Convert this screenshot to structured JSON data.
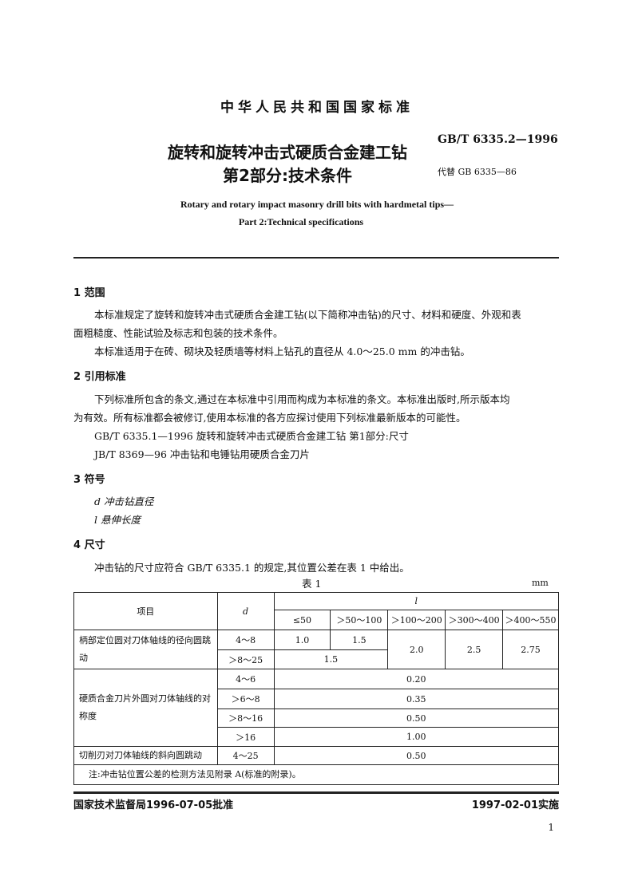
{
  "header": {
    "org": "中华人民共和国国家标准",
    "title_line1": "旋转和旋转冲击式硬质合金建工钻",
    "title_line2": "第2部分:技术条件",
    "code": "GB/T 6335.2—1996",
    "replaces": "代替 GB 6335—86",
    "en_line1": "Rotary and rotary impact masonry drill bits with hardmetal tips—",
    "en_line2": "Part 2:Technical specifications"
  },
  "sections": [
    {
      "heading": "1  范围",
      "paras": [
        "本标准规定了旋转和旋转冲击式硬质合金建工钻(以下简称冲击钻)的尺寸、材料和硬度、外观和表",
        "面粗糙度、性能试验及标志和包装的技术条件。",
        "本标准适用于在砖、砌块及轻质墙等材料上钻孔的直径从 4.0～25.0 mm 的冲击钻。"
      ]
    },
    {
      "heading": "2  引用标准",
      "paras": [
        "下列标准所包含的条文,通过在本标准中引用而构成为本标准的条文。本标准出版时,所示版本均",
        "为有效。所有标准都会被修订,使用本标准的各方应探讨使用下列标准最新版本的可能性。",
        "GB/T 6335.1—1996   旋转和旋转冲击式硬质合金建工钻   第1部分:尺寸",
        "JB/T 8369—96   冲击钻和电锤钻用硬质合金刀片"
      ]
    },
    {
      "heading": "3  符号",
      "paras": [
        "d   冲击钻直径",
        "l   悬伸长度"
      ]
    },
    {
      "heading": "4  尺寸",
      "paras": [
        "冲击钻的尺寸应符合 GB/T 6335.1 的规定,其位置公差在表 1 中给出。"
      ]
    }
  ],
  "table": {
    "caption": "表 1",
    "unit": "mm",
    "col_item": "项目",
    "col_d": "d",
    "col_l": "l",
    "l_ranges": [
      "≤50",
      "＞50～100",
      "＞100～200",
      "＞300～400",
      "＞400～550"
    ],
    "row1": {
      "item": "柄部定位圆对刀体轴线的径向圆跳动",
      "d1": "4～8",
      "d2": "＞8～25",
      "v_a": "1.0",
      "v_b": "1.5",
      "v_ab2": "1.5",
      "v_c": "2.0",
      "v_d": "2.5",
      "v_e": "2.75"
    },
    "row2": {
      "item": "硬质合金刀片外圆对刀体轴线的对称度",
      "d": [
        "4～6",
        "＞6～8",
        "＞8～16",
        "＞16"
      ],
      "v": [
        "0.20",
        "0.35",
        "0.50",
        "1.00"
      ]
    },
    "row3": {
      "item": "切削刃对刀体轴线的斜向圆跳动",
      "d": "4～25",
      "v": "0.50"
    },
    "note": "注:冲击钻位置公差的检测方法见附录 A(标准的附录)。"
  },
  "footer": {
    "issued": "国家技术监督局1996-07-05批准",
    "effective": "1997-02-01实施",
    "page": "1"
  }
}
